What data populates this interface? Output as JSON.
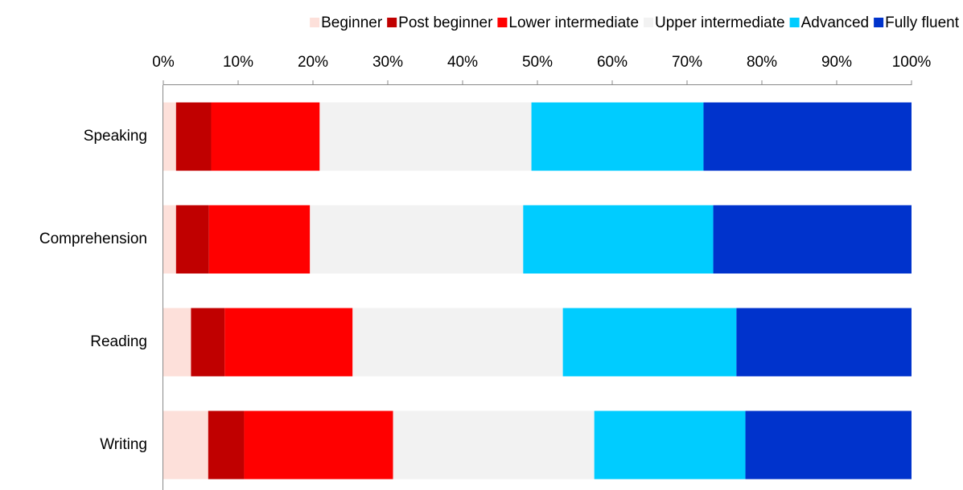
{
  "chart_data": {
    "type": "stacked-bar-horizontal",
    "categories": [
      "Speaking",
      "Comprehension",
      "Reading",
      "Writing"
    ],
    "series": [
      {
        "name": "Beginner",
        "color": "#fde0da",
        "values": [
          1.7,
          1.7,
          3.7,
          6.0
        ]
      },
      {
        "name": "Post beginner",
        "color": "#c00000",
        "values": [
          4.7,
          4.4,
          4.5,
          4.8
        ]
      },
      {
        "name": "Lower intermediate",
        "color": "#ff0000",
        "values": [
          14.5,
          13.5,
          17.1,
          19.9
        ]
      },
      {
        "name": "Upper intermediate",
        "color": "#f2f2f2",
        "values": [
          28.3,
          28.5,
          28.1,
          26.9
        ]
      },
      {
        "name": "Advanced",
        "color": "#00ccff",
        "values": [
          23.0,
          25.4,
          23.2,
          20.2
        ]
      },
      {
        "name": "Fully fluent",
        "color": "#0033cc",
        "values": [
          27.8,
          26.5,
          23.4,
          22.2
        ]
      }
    ],
    "xlim": [
      0,
      100
    ],
    "xticks": [
      {
        "value": 0,
        "label": "0%"
      },
      {
        "value": 10,
        "label": "10%"
      },
      {
        "value": 20,
        "label": "20%"
      },
      {
        "value": 30,
        "label": "30%"
      },
      {
        "value": 40,
        "label": "40%"
      },
      {
        "value": 50,
        "label": "50%"
      },
      {
        "value": 60,
        "label": "60%"
      },
      {
        "value": 70,
        "label": "70%"
      },
      {
        "value": 80,
        "label": "80%"
      },
      {
        "value": 90,
        "label": "90%"
      },
      {
        "value": 100,
        "label": "100%"
      }
    ],
    "legend": "top"
  }
}
